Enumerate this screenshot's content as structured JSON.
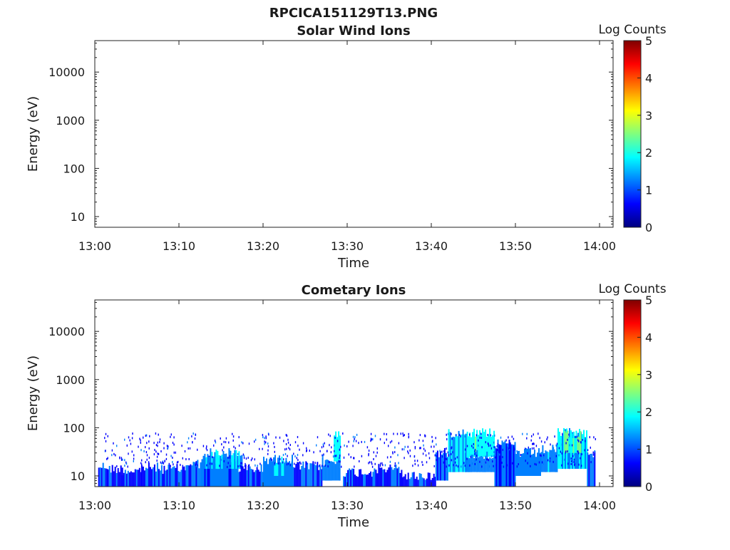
{
  "figure": {
    "title": "RPCICA151129T13.PNG"
  },
  "colormap": [
    "#00007f",
    "#0000ff",
    "#007fff",
    "#00ffff",
    "#7fff7f",
    "#ffff00",
    "#ff7f00",
    "#ff0000",
    "#7f0000"
  ],
  "chart_data": [
    {
      "type": "heatmap",
      "title": "Solar Wind Ions",
      "xlabel": "Time",
      "ylabel": "Energy (eV)",
      "x_ticks": [
        "13:00",
        "13:10",
        "13:20",
        "13:30",
        "13:40",
        "13:50",
        "14:00"
      ],
      "x_range": [
        "13:00",
        "14:00"
      ],
      "y_scale": "log",
      "y_range": [
        6,
        45000
      ],
      "y_ticks": [
        {
          "value": 10,
          "label": "10"
        },
        {
          "value": 100,
          "label": "100"
        },
        {
          "value": 1000,
          "label": "1000"
        },
        {
          "value": 10000,
          "label": "10000"
        }
      ],
      "colorbar": {
        "label": "Log Counts",
        "range": [
          0,
          5
        ],
        "ticks": [
          "0",
          "1",
          "2",
          "3",
          "4",
          "5"
        ]
      },
      "blocks": []
    },
    {
      "type": "heatmap",
      "title": "Cometary Ions",
      "xlabel": "Time",
      "ylabel": "Energy (eV)",
      "x_ticks": [
        "13:00",
        "13:10",
        "13:20",
        "13:30",
        "13:40",
        "13:50",
        "14:00"
      ],
      "x_range": [
        "13:00",
        "14:00"
      ],
      "y_scale": "log",
      "y_range": [
        6,
        45000
      ],
      "y_ticks": [
        {
          "value": 10,
          "label": "10"
        },
        {
          "value": 100,
          "label": "100"
        },
        {
          "value": 1000,
          "label": "1000"
        },
        {
          "value": 10000,
          "label": "10000"
        }
      ],
      "colorbar": {
        "label": "Log Counts",
        "range": [
          0,
          5
        ],
        "ticks": [
          "0",
          "1",
          "2",
          "3",
          "4",
          "5"
        ]
      },
      "blocks": [
        {
          "t0": 0.4,
          "t1": 1.5,
          "e_lo": 6,
          "e_hi": 16,
          "level": 0.8
        },
        {
          "t0": 1.5,
          "t1": 3.2,
          "e_lo": 6,
          "e_hi": 14,
          "level": 0.9
        },
        {
          "t0": 3.2,
          "t1": 5.5,
          "e_lo": 6,
          "e_hi": 13,
          "level": 0.85
        },
        {
          "t0": 5.5,
          "t1": 8.0,
          "e_lo": 6,
          "e_hi": 15,
          "level": 0.9
        },
        {
          "t0": 8.0,
          "t1": 10.8,
          "e_lo": 6,
          "e_hi": 14,
          "level": 0.8
        },
        {
          "t0": 10.8,
          "t1": 12.5,
          "e_lo": 6,
          "e_hi": 18,
          "level": 1.0
        },
        {
          "t0": 12.5,
          "t1": 17.0,
          "e_lo": 6,
          "e_hi": 22,
          "level": 1.1
        },
        {
          "t0": 13.0,
          "t1": 17.5,
          "e_lo": 14,
          "e_hi": 30,
          "level": 1.4
        },
        {
          "t0": 17.0,
          "t1": 20.0,
          "e_lo": 6,
          "e_hi": 14,
          "level": 0.9
        },
        {
          "t0": 20.0,
          "t1": 23.5,
          "e_lo": 6,
          "e_hi": 22,
          "level": 1.2
        },
        {
          "t0": 20.8,
          "t1": 22.8,
          "e_lo": 10,
          "e_hi": 20,
          "level": 1.6
        },
        {
          "t0": 23.5,
          "t1": 27.0,
          "e_lo": 6,
          "e_hi": 16,
          "level": 1.0
        },
        {
          "t0": 27.0,
          "t1": 29.2,
          "e_lo": 8,
          "e_hi": 20,
          "level": 1.2
        },
        {
          "t0": 28.4,
          "t1": 29.1,
          "e_lo": 20,
          "e_hi": 80,
          "level": 1.7
        },
        {
          "t0": 29.5,
          "t1": 33.0,
          "e_lo": 6,
          "e_hi": 12,
          "level": 0.9
        },
        {
          "t0": 33.0,
          "t1": 36.5,
          "e_lo": 6,
          "e_hi": 14,
          "level": 0.9
        },
        {
          "t0": 36.5,
          "t1": 40.5,
          "e_lo": 6,
          "e_hi": 10,
          "level": 0.8
        },
        {
          "t0": 40.5,
          "t1": 42.0,
          "e_lo": 8,
          "e_hi": 30,
          "level": 1.0
        },
        {
          "t0": 42.0,
          "t1": 44.5,
          "e_lo": 12,
          "e_hi": 80,
          "level": 1.5
        },
        {
          "t0": 44.5,
          "t1": 47.5,
          "e_lo": 25,
          "e_hi": 80,
          "level": 2.0
        },
        {
          "t0": 44.0,
          "t1": 47.5,
          "e_lo": 12,
          "e_hi": 28,
          "level": 1.2
        },
        {
          "t0": 47.5,
          "t1": 50.0,
          "e_lo": 6,
          "e_hi": 45,
          "level": 1.0
        },
        {
          "t0": 50.0,
          "t1": 53.0,
          "e_lo": 10,
          "e_hi": 30,
          "level": 1.3
        },
        {
          "t0": 53.0,
          "t1": 55.0,
          "e_lo": 12,
          "e_hi": 35,
          "level": 1.4
        },
        {
          "t0": 55.0,
          "t1": 58.5,
          "e_lo": 14,
          "e_hi": 80,
          "level": 1.6
        },
        {
          "t0": 55.8,
          "t1": 57.8,
          "e_lo": 30,
          "e_hi": 75,
          "level": 2.2
        },
        {
          "t0": 58.5,
          "t1": 59.5,
          "e_lo": 6,
          "e_hi": 30,
          "level": 1.1
        }
      ]
    }
  ]
}
